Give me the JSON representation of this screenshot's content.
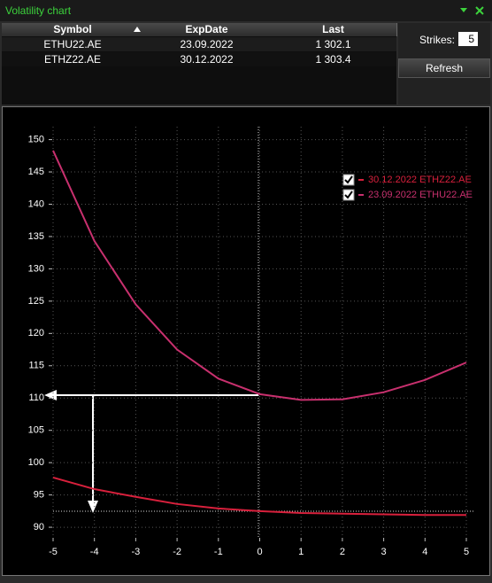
{
  "window": {
    "title": "Volatility chart"
  },
  "table": {
    "columns": [
      "Symbol",
      "ExpDate",
      "Last"
    ],
    "rows": [
      [
        "ETHU22.AE",
        "23.09.2022",
        "1 302.1"
      ],
      [
        "ETHZ22.AE",
        "30.12.2022",
        "1 303.4"
      ]
    ]
  },
  "controls": {
    "strikes_label": "Strikes:",
    "strikes_value": 5,
    "refresh": "Refresh"
  },
  "chart_data": {
    "type": "line",
    "x": [
      -5,
      -4,
      -3,
      -2,
      -1,
      0,
      1,
      2,
      3,
      4,
      5
    ],
    "series": [
      {
        "name": "30.12.2022 ETHZ22.AE",
        "color": "#d8203c",
        "values": [
          97.7,
          95.9,
          94.7,
          93.6,
          92.9,
          92.5,
          92.2,
          92.1,
          92.0,
          91.9,
          91.9
        ]
      },
      {
        "name": "23.09.2022 ETHU22.AE",
        "color": "#c8306e",
        "values": [
          148.3,
          134.3,
          124.5,
          117.5,
          113.0,
          110.6,
          109.7,
          109.8,
          110.9,
          112.8,
          115.5
        ]
      }
    ],
    "xlim": [
      -5,
      5
    ],
    "xticks": [
      -5,
      -4,
      -3,
      -2,
      -1,
      0,
      1,
      2,
      3,
      4,
      5
    ],
    "ylim": [
      88.5,
      152
    ],
    "yticks": [
      90,
      95,
      100,
      105,
      110,
      115,
      120,
      125,
      130,
      135,
      140,
      145,
      150
    ],
    "grid": true,
    "legend": "upper right"
  }
}
